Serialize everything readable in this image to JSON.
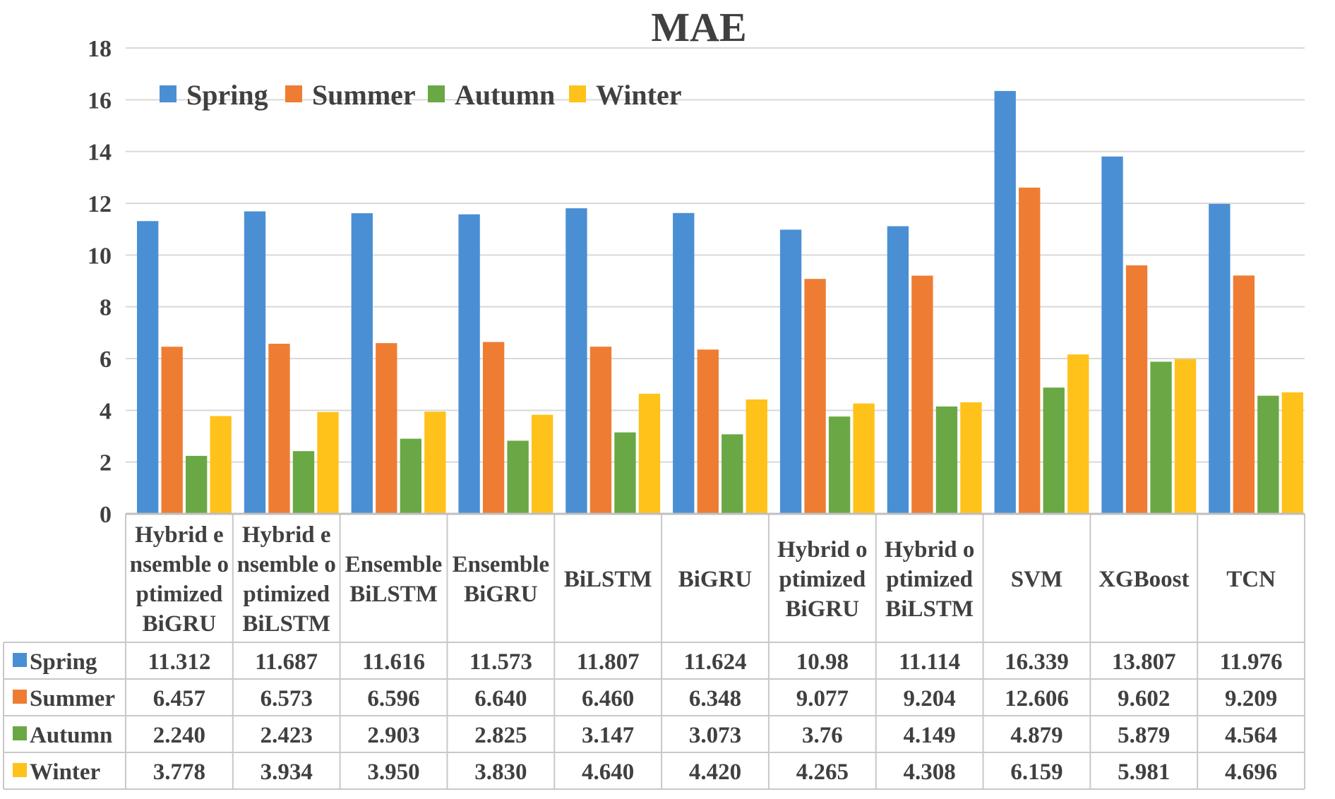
{
  "chart_data": {
    "type": "bar",
    "title": "MAE",
    "xlabel": "",
    "ylabel": "",
    "ylim": [
      0,
      18
    ],
    "ytick_step": 2,
    "yticks": [
      "0",
      "2",
      "4",
      "6",
      "8",
      "10",
      "12",
      "14",
      "16",
      "18"
    ],
    "grid": true,
    "legend_position": "top-left",
    "categories": [
      "Hybrid ensemble optimized BiGRU",
      "Hybrid ensemble optimized BiLSTM",
      "Ensemble BiLSTM",
      "Ensemble BiGRU",
      "BiLSTM",
      "BiGRU",
      "Hybrid optimized BiGRU",
      "Hybrid optimized BiLSTM",
      "SVM",
      "XGBoost",
      "TCN"
    ],
    "category_label_lines": [
      [
        "Hybrid e",
        "nsemble o",
        "ptimized",
        "BiGRU"
      ],
      [
        "Hybrid e",
        "nsemble o",
        "ptimized",
        "BiLSTM"
      ],
      [
        "Ensemble",
        "BiLSTM"
      ],
      [
        "Ensemble",
        "BiGRU"
      ],
      [
        "BiLSTM"
      ],
      [
        "BiGRU"
      ],
      [
        "Hybrid o",
        "ptimized",
        "BiGRU"
      ],
      [
        "Hybrid o",
        "ptimized",
        "BiLSTM"
      ],
      [
        "SVM"
      ],
      [
        "XGBoost"
      ],
      [
        "TCN"
      ]
    ],
    "series": [
      {
        "name": "Spring",
        "color": "#4a8fd4",
        "values": [
          11.312,
          11.687,
          11.616,
          11.573,
          11.807,
          11.624,
          10.98,
          11.114,
          16.339,
          13.807,
          11.976
        ],
        "labels": [
          "11.312",
          "11.687",
          "11.616",
          "11.573",
          "11.807",
          "11.624",
          "10.98",
          "11.114",
          "16.339",
          "13.807",
          "11.976"
        ]
      },
      {
        "name": "Summer",
        "color": "#ee7d33",
        "values": [
          6.457,
          6.573,
          6.596,
          6.64,
          6.46,
          6.348,
          9.077,
          9.204,
          12.606,
          9.602,
          9.209
        ],
        "labels": [
          "6.457",
          "6.573",
          "6.596",
          "6.640",
          "6.460",
          "6.348",
          "9.077",
          "9.204",
          "12.606",
          "9.602",
          "9.209"
        ]
      },
      {
        "name": "Autumn",
        "color": "#6aa845",
        "values": [
          2.24,
          2.423,
          2.903,
          2.825,
          3.147,
          3.073,
          3.76,
          4.149,
          4.879,
          5.879,
          4.564
        ],
        "labels": [
          "2.240",
          "2.423",
          "2.903",
          "2.825",
          "3.147",
          "3.073",
          "3.76",
          "4.149",
          "4.879",
          "5.879",
          "4.564"
        ]
      },
      {
        "name": "Winter",
        "color": "#ffc21a",
        "values": [
          3.778,
          3.934,
          3.95,
          3.83,
          4.64,
          4.42,
          4.265,
          4.308,
          6.159,
          5.981,
          4.696
        ],
        "labels": [
          "3.778",
          "3.934",
          "3.950",
          "3.830",
          "4.640",
          "4.420",
          "4.265",
          "4.308",
          "6.159",
          "5.981",
          "4.696"
        ]
      }
    ]
  }
}
